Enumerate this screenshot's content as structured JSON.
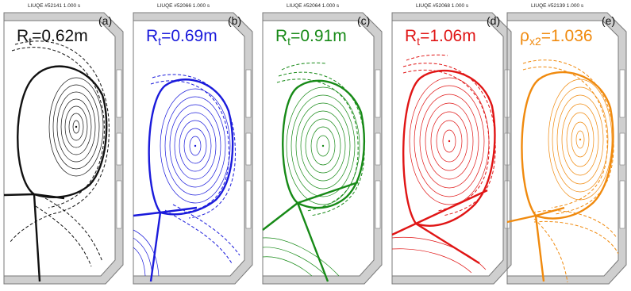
{
  "panels": [
    {
      "header": "LIUQE #52141 1.000 s",
      "tag": "(a)",
      "label_main": "R",
      "label_sub": "t",
      "label_value": "=0.62m",
      "color": "#111111"
    },
    {
      "header": "LIUQE #52066 1.000 s",
      "tag": "(b)",
      "label_main": "R",
      "label_sub": "t",
      "label_value": "=0.69m",
      "color": "#1a1adb"
    },
    {
      "header": "LIUQE #52064 1.000 s",
      "tag": "(c)",
      "label_main": "R",
      "label_sub": "t",
      "label_value": "=0.91m",
      "color": "#178a17"
    },
    {
      "header": "LIUQE #52068 1.000 s",
      "tag": "(d)",
      "label_main": "R",
      "label_sub": "t",
      "label_value": "=1.06m",
      "color": "#e01515"
    },
    {
      "header": "LIUQE #52139 1.000 s",
      "tag": "(e)",
      "label_main": "ρ",
      "label_sub": "x2",
      "label_value": "=1.036",
      "color": "#f08a0e"
    }
  ],
  "colors": {
    "wall_fill": "#cfcfcf",
    "wall_stroke": "#7a7a7a"
  }
}
